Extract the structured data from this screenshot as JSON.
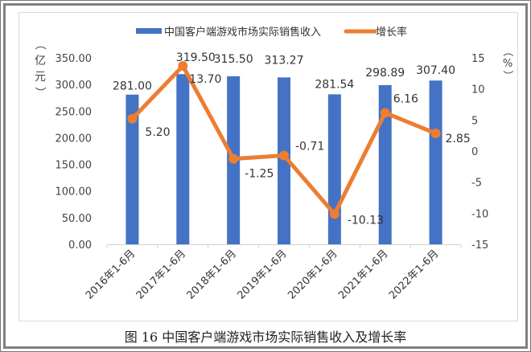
{
  "chart_data": {
    "type": "bar+line",
    "title": "",
    "caption": "图 16 中国客户端游戏市场实际销售收入及增长率",
    "categories": [
      "2016年1-6月",
      "2017年1-6月",
      "2018年1-6月",
      "2019年1-6月",
      "2020年1-6月",
      "2021年1-6月",
      "2022年1-6月"
    ],
    "series": [
      {
        "name": "中国客户端游戏市场实际销售收入",
        "type": "bar",
        "axis": "left",
        "color": "#4472C4",
        "values": [
          281.0,
          319.5,
          315.5,
          313.27,
          281.54,
          298.89,
          307.4
        ],
        "labels": [
          "281.00",
          "319.50",
          "315.50",
          "313.27",
          "281.54",
          "298.89",
          "307.40"
        ]
      },
      {
        "name": "增长率",
        "type": "line",
        "axis": "right",
        "color": "#ED7D31",
        "values": [
          5.2,
          13.7,
          -1.25,
          -0.71,
          -10.13,
          6.16,
          2.85
        ],
        "labels": [
          "5.20",
          "13.70",
          "-1.25",
          "-0.71",
          "-10.13",
          "6.16",
          "2.85"
        ]
      }
    ],
    "left_axis": {
      "label": "（亿元）",
      "ylim": [
        0,
        350
      ],
      "ticks": [
        "0.00",
        "50.00",
        "100.00",
        "150.00",
        "200.00",
        "250.00",
        "300.00",
        "350.00"
      ]
    },
    "right_axis": {
      "label": "（%）",
      "ylim": [
        -15,
        15
      ],
      "ticks": [
        "-15",
        "-10",
        "-5",
        "0",
        "5",
        "10",
        "15"
      ]
    },
    "legend": {
      "position": "top",
      "entries": [
        "中国客户端游戏市场实际销售收入",
        "增长率"
      ]
    },
    "grid": false
  }
}
